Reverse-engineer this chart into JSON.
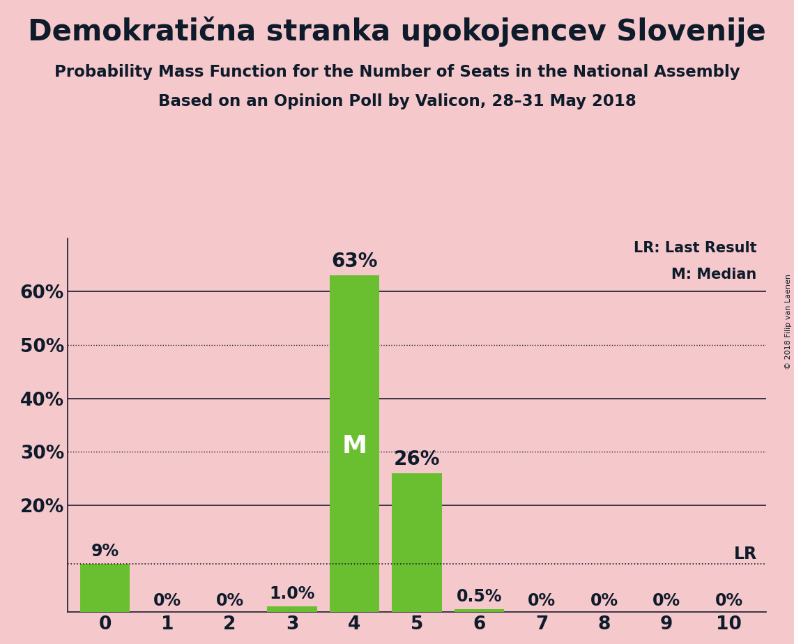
{
  "title": "Demokratična stranka upokojencev Slovenije",
  "subtitle1": "Probability Mass Function for the Number of Seats in the National Assembly",
  "subtitle2": "Based on an Opinion Poll by Valicon, 28–31 May 2018",
  "copyright": "© 2018 Filip van Laenen",
  "background_color": "#f5c8cc",
  "bar_color": "#6abf30",
  "x_values": [
    0,
    1,
    2,
    3,
    4,
    5,
    6,
    7,
    8,
    9,
    10
  ],
  "y_values": [
    9.0,
    0.0,
    0.0,
    1.0,
    63.0,
    26.0,
    0.5,
    0.0,
    0.0,
    0.0,
    0.0
  ],
  "bar_labels": [
    "9%",
    "0%",
    "0%",
    "1.0%",
    "63%",
    "26%",
    "0.5%",
    "0%",
    "0%",
    "0%",
    "0%"
  ],
  "ylim": [
    0,
    70
  ],
  "median_seat": 4,
  "lr_value": 9.0,
  "legend_lr": "LR: Last Result",
  "legend_m": "M: Median",
  "lr_label": "LR",
  "title_fontsize": 30,
  "subtitle_fontsize": 16.5,
  "tick_fontsize": 19,
  "label_fontsize": 17,
  "solid_lines": [
    20,
    40,
    60
  ],
  "dotted_lines": [
    30,
    50
  ],
  "ytick_positions": [
    20,
    30,
    40,
    50,
    60
  ],
  "ytick_labels": [
    "20%",
    "30%",
    "40%",
    "50%",
    "60%"
  ]
}
